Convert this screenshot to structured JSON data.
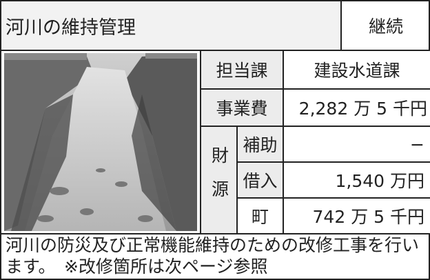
{
  "header": {
    "title": "河川の維持管理",
    "status": "継続"
  },
  "rows": [
    {
      "label": "担当課",
      "value": "建設水道課"
    },
    {
      "label": "事業費",
      "value": "2,282 万 5 千円"
    }
  ],
  "funding": {
    "label": "財源",
    "items": [
      {
        "label": "補助",
        "value": "−"
      },
      {
        "label": "借入",
        "value": "1,540 万円"
      },
      {
        "label": "町",
        "value": "742 万 5 千円"
      }
    ]
  },
  "description": "河川の防災及び正常機能維持のための改修工事を行います。　※改修箇所は次ページ参照"
}
